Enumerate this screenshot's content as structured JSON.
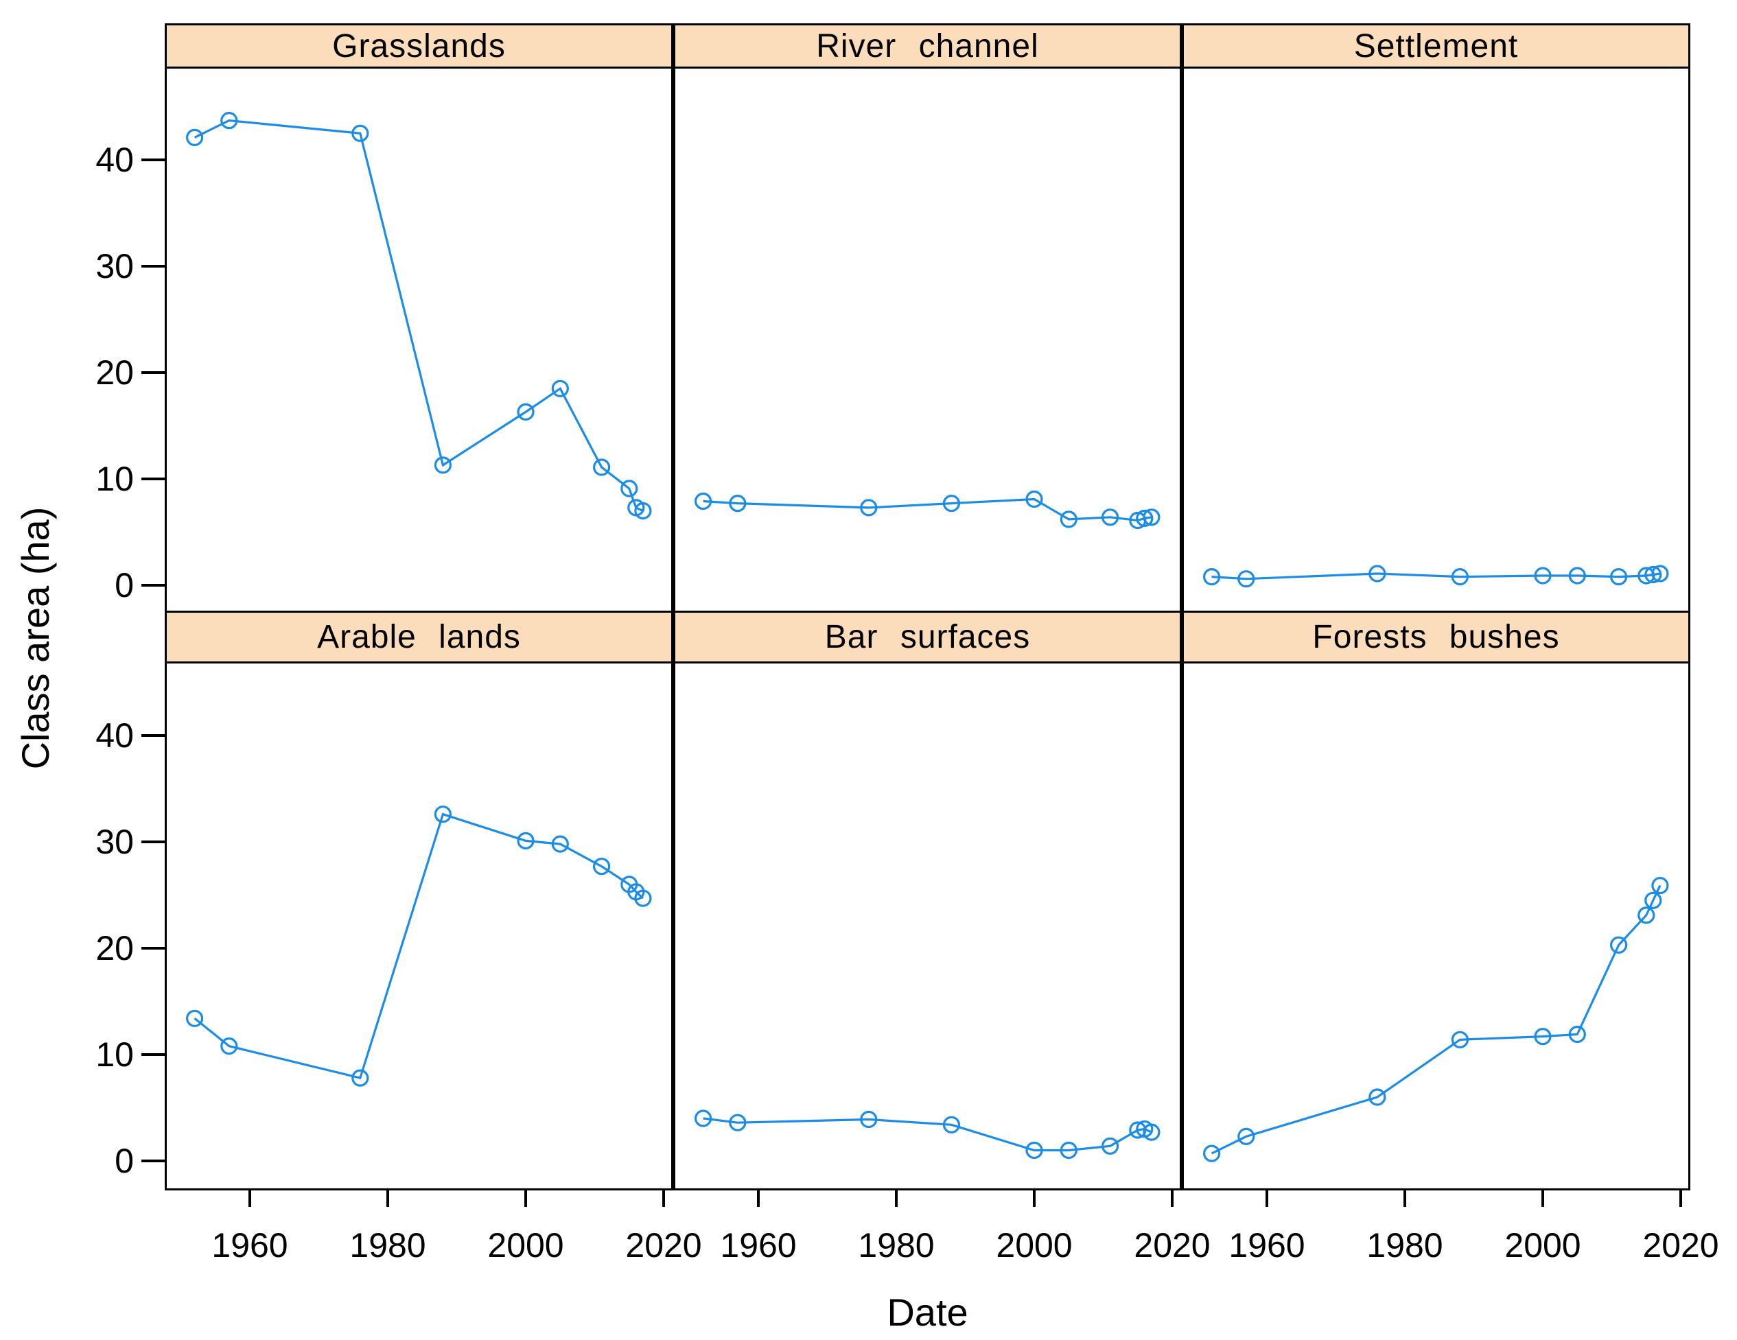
{
  "figure": {
    "ylabel": "Class area (ha)",
    "xlabel": "Date",
    "colors": {
      "line": "#1B8CE8",
      "marker_stroke": "#1B8CE8",
      "strip_background": "#FBDCBB",
      "panel_border": "#000000",
      "background": "#FFFFFF",
      "text": "#000000"
    }
  },
  "axes": {
    "y_tick_labels": [
      "0",
      "10",
      "20",
      "30",
      "40"
    ],
    "y_ticks": [
      0,
      10,
      20,
      30,
      40
    ],
    "x_tick_labels": [
      "1960",
      "1980",
      "2000",
      "2020"
    ],
    "x_ticks": [
      1960,
      1980,
      2000,
      2020
    ],
    "x_range": [
      1947.7,
      2021.7
    ],
    "y_range": [
      -2.5,
      48.6
    ],
    "grid": "off"
  },
  "chart_data": {
    "type": "line",
    "layout": "lattice 2 rows x 3 columns, strip header above each panel",
    "marker": "open-circle",
    "legend": "none",
    "title": "",
    "xlabel": "Date",
    "ylabel": "Class area (ha)",
    "ylim": [
      -2.5,
      48.6
    ],
    "xlim": [
      1947.7,
      2021.7
    ],
    "x": [
      1952,
      1957,
      1976,
      1988,
      2000,
      2005,
      2011,
      2015,
      2016,
      2017
    ],
    "series": [
      {
        "name": "Grasslands",
        "row": 1,
        "col": 1,
        "values": [
          42.1,
          43.7,
          42.5,
          11.3,
          16.3,
          18.5,
          11.1,
          9.1,
          7.3,
          7.0
        ]
      },
      {
        "name": "River channel",
        "row": 1,
        "col": 2,
        "values": [
          7.9,
          7.7,
          7.3,
          7.7,
          8.1,
          6.2,
          6.4,
          6.1,
          6.3,
          6.4
        ]
      },
      {
        "name": "Settlement",
        "row": 1,
        "col": 3,
        "values": [
          0.8,
          0.6,
          1.1,
          0.8,
          0.9,
          0.9,
          0.8,
          0.9,
          1.0,
          1.1
        ]
      },
      {
        "name": "Arable lands",
        "row": 2,
        "col": 1,
        "values": [
          13.4,
          10.8,
          7.8,
          32.6,
          30.1,
          29.8,
          27.7,
          26.0,
          25.3,
          24.7
        ]
      },
      {
        "name": "Bar surfaces",
        "row": 2,
        "col": 2,
        "values": [
          4.0,
          3.6,
          3.9,
          3.4,
          1.0,
          1.0,
          1.4,
          2.9,
          3.0,
          2.7
        ]
      },
      {
        "name": "Forests bushes",
        "row": 2,
        "col": 3,
        "values": [
          0.7,
          2.3,
          6.0,
          11.4,
          11.7,
          11.9,
          20.3,
          23.1,
          24.5,
          25.9
        ]
      }
    ]
  }
}
